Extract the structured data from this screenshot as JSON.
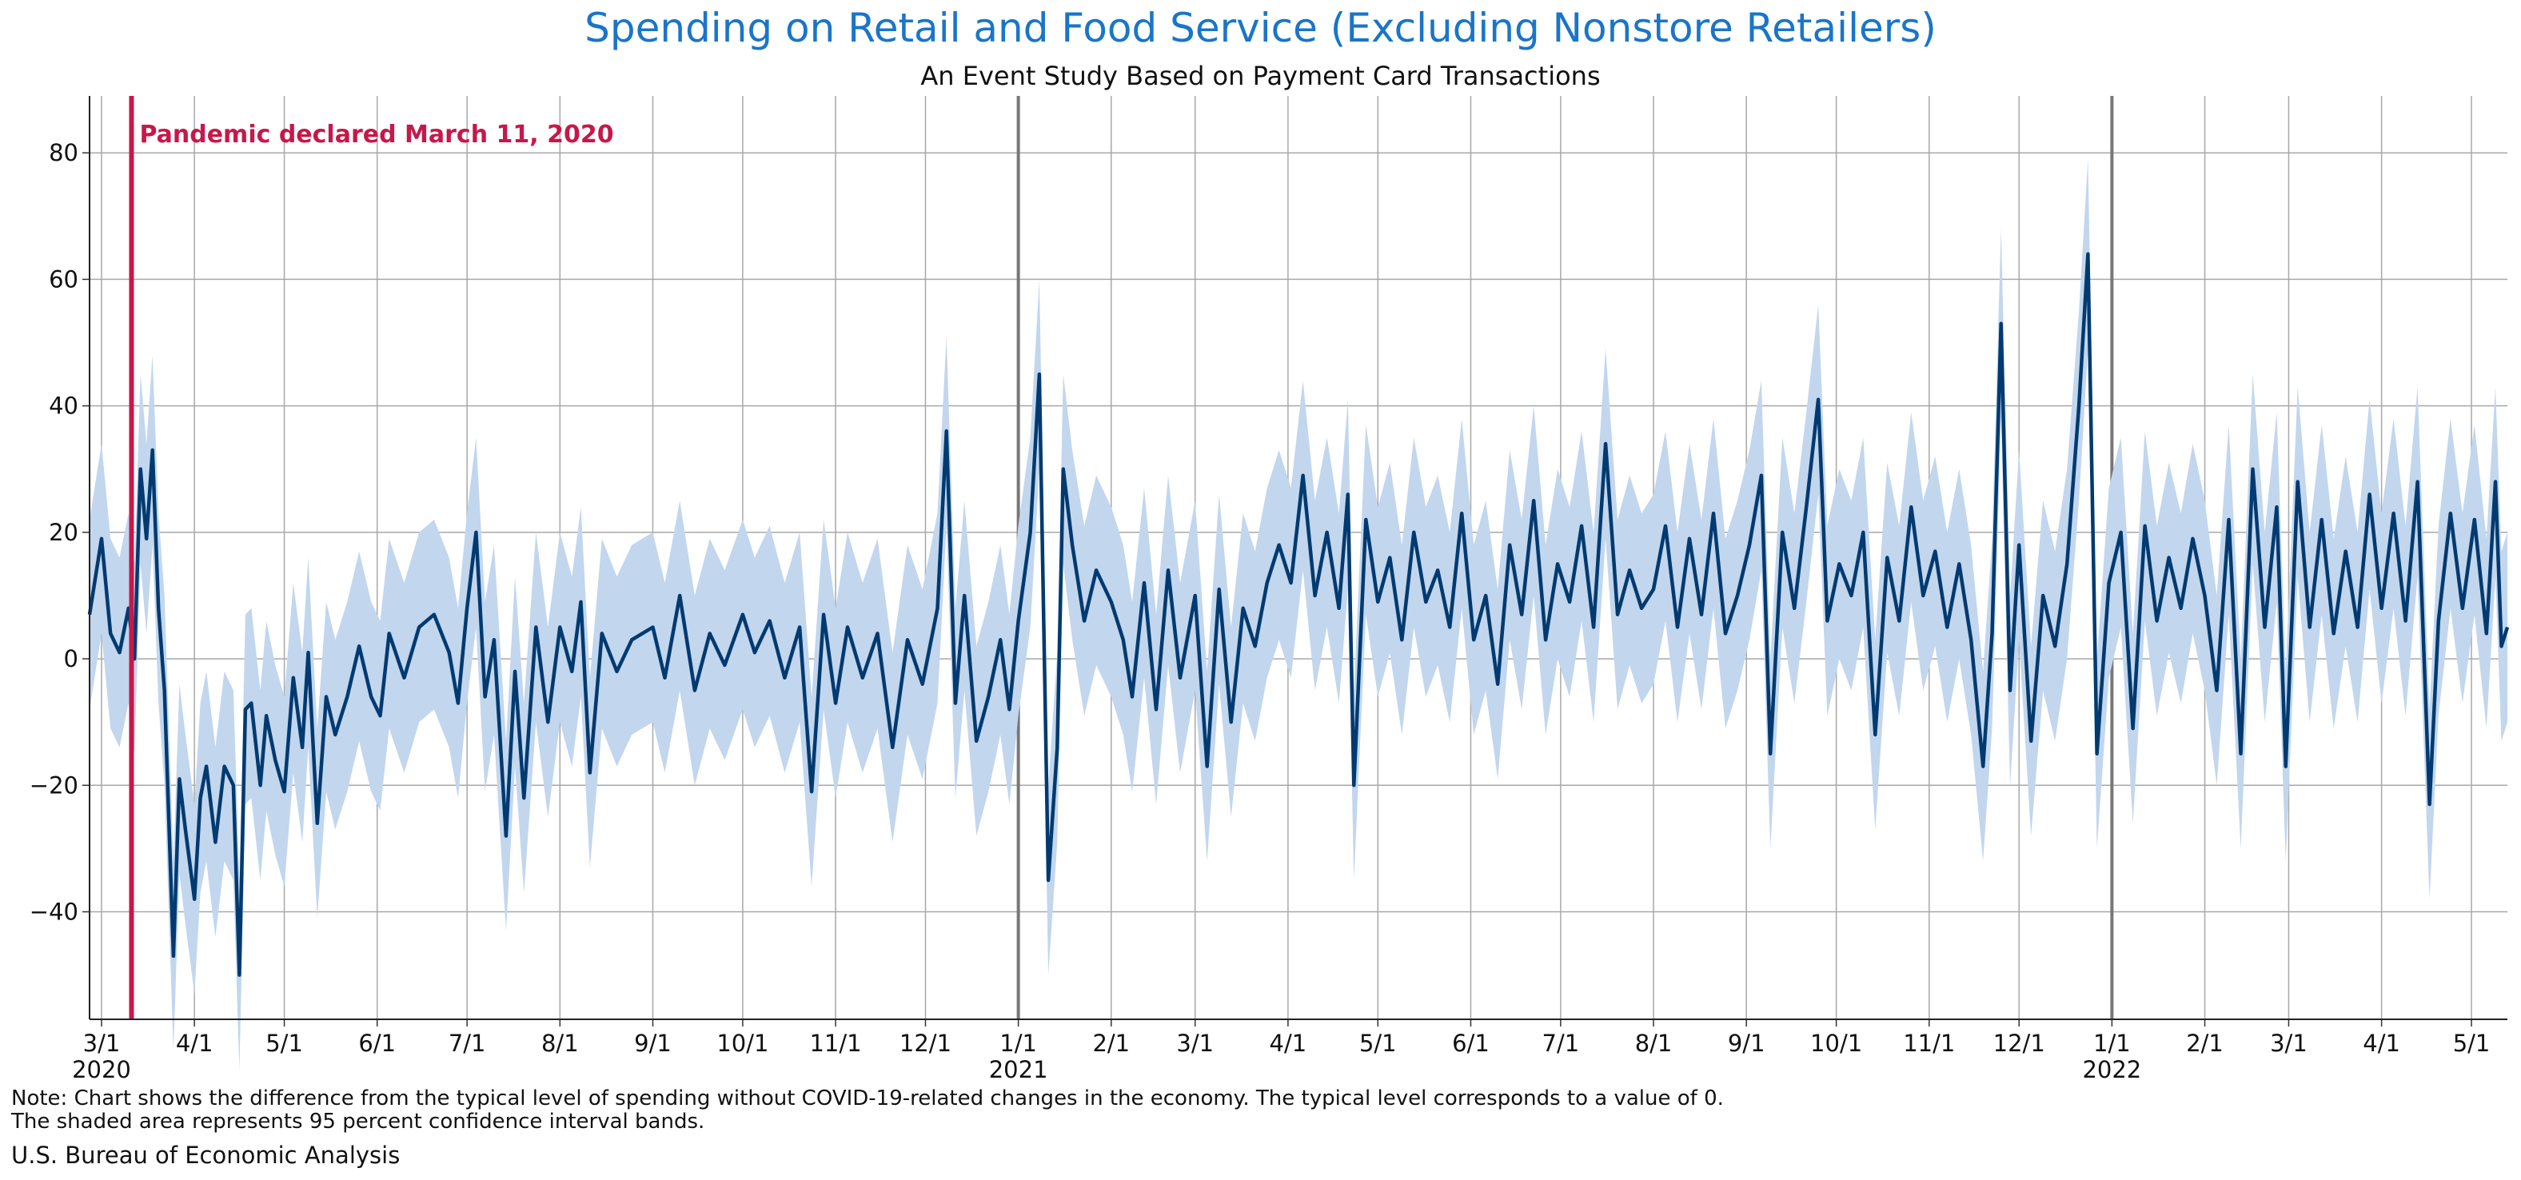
{
  "chart_data": {
    "type": "line",
    "title": "Spending on Retail and Food Service (Excluding Nonstore Retailers)",
    "subtitle": "An Event Study Based on Payment Card Transactions",
    "xlabel": "",
    "ylabel": "",
    "ylim": [
      -57,
      89
    ],
    "yticks": [
      -40,
      -20,
      0,
      20,
      40,
      60,
      80
    ],
    "ytick_labels": [
      "−40",
      "−20",
      "0",
      "20",
      "40",
      "60",
      "80"
    ],
    "xlim": [
      "2020-02-26",
      "2022-05-13"
    ],
    "grid": true,
    "xticks": [
      {
        "date": "2020-03-01",
        "label": "3/1",
        "year": "2020"
      },
      {
        "date": "2020-04-01",
        "label": "4/1"
      },
      {
        "date": "2020-05-01",
        "label": "5/1"
      },
      {
        "date": "2020-06-01",
        "label": "6/1"
      },
      {
        "date": "2020-07-01",
        "label": "7/1"
      },
      {
        "date": "2020-08-01",
        "label": "8/1"
      },
      {
        "date": "2020-09-01",
        "label": "9/1"
      },
      {
        "date": "2020-10-01",
        "label": "10/1"
      },
      {
        "date": "2020-11-01",
        "label": "11/1"
      },
      {
        "date": "2020-12-01",
        "label": "12/1"
      },
      {
        "date": "2021-01-01",
        "label": "1/1",
        "year": "2021"
      },
      {
        "date": "2021-02-01",
        "label": "2/1"
      },
      {
        "date": "2021-03-01",
        "label": "3/1"
      },
      {
        "date": "2021-04-01",
        "label": "4/1"
      },
      {
        "date": "2021-05-01",
        "label": "5/1"
      },
      {
        "date": "2021-06-01",
        "label": "6/1"
      },
      {
        "date": "2021-07-01",
        "label": "7/1"
      },
      {
        "date": "2021-08-01",
        "label": "8/1"
      },
      {
        "date": "2021-09-01",
        "label": "9/1"
      },
      {
        "date": "2021-10-01",
        "label": "10/1"
      },
      {
        "date": "2021-11-01",
        "label": "11/1"
      },
      {
        "date": "2021-12-01",
        "label": "12/1"
      },
      {
        "date": "2022-01-01",
        "label": "1/1",
        "year": "2022"
      },
      {
        "date": "2022-02-01",
        "label": "2/1"
      },
      {
        "date": "2022-03-01",
        "label": "3/1"
      },
      {
        "date": "2022-04-01",
        "label": "4/1"
      },
      {
        "date": "2022-05-01",
        "label": "5/1"
      }
    ],
    "year_dividers": [
      "2021-01-01",
      "2022-01-01"
    ],
    "event": {
      "date": "2020-03-11",
      "label": "Pandemic declared March 11, 2020",
      "color": "#c8174a"
    },
    "series": [
      {
        "line_color": "#003a70",
        "band_color": "#c2d6ee",
        "band_half_width": 15,
        "points": [
          [
            "2020-02-26",
            7
          ],
          [
            "2020-03-01",
            19
          ],
          [
            "2020-03-04",
            4
          ],
          [
            "2020-03-07",
            1
          ],
          [
            "2020-03-10",
            8
          ],
          [
            "2020-03-12",
            0
          ],
          [
            "2020-03-14",
            30
          ],
          [
            "2020-03-16",
            19
          ],
          [
            "2020-03-18",
            33
          ],
          [
            "2020-03-20",
            8
          ],
          [
            "2020-03-22",
            -5
          ],
          [
            "2020-03-25",
            -47
          ],
          [
            "2020-03-27",
            -19
          ],
          [
            "2020-03-29",
            -27
          ],
          [
            "2020-04-01",
            -38
          ],
          [
            "2020-04-03",
            -22
          ],
          [
            "2020-04-05",
            -17
          ],
          [
            "2020-04-08",
            -29
          ],
          [
            "2020-04-11",
            -17
          ],
          [
            "2020-04-14",
            -20
          ],
          [
            "2020-04-16",
            -50
          ],
          [
            "2020-04-18",
            -8
          ],
          [
            "2020-04-20",
            -7
          ],
          [
            "2020-04-23",
            -20
          ],
          [
            "2020-04-25",
            -9
          ],
          [
            "2020-04-28",
            -16
          ],
          [
            "2020-05-01",
            -21
          ],
          [
            "2020-05-04",
            -3
          ],
          [
            "2020-05-07",
            -14
          ],
          [
            "2020-05-09",
            1
          ],
          [
            "2020-05-12",
            -26
          ],
          [
            "2020-05-15",
            -6
          ],
          [
            "2020-05-18",
            -12
          ],
          [
            "2020-05-22",
            -6
          ],
          [
            "2020-05-26",
            2
          ],
          [
            "2020-05-30",
            -6
          ],
          [
            "2020-06-02",
            -9
          ],
          [
            "2020-06-05",
            4
          ],
          [
            "2020-06-10",
            -3
          ],
          [
            "2020-06-15",
            5
          ],
          [
            "2020-06-20",
            7
          ],
          [
            "2020-06-25",
            1
          ],
          [
            "2020-06-28",
            -7
          ],
          [
            "2020-07-01",
            8
          ],
          [
            "2020-07-04",
            20
          ],
          [
            "2020-07-07",
            -6
          ],
          [
            "2020-07-10",
            3
          ],
          [
            "2020-07-14",
            -28
          ],
          [
            "2020-07-17",
            -2
          ],
          [
            "2020-07-20",
            -22
          ],
          [
            "2020-07-24",
            5
          ],
          [
            "2020-07-28",
            -10
          ],
          [
            "2020-08-01",
            5
          ],
          [
            "2020-08-05",
            -2
          ],
          [
            "2020-08-08",
            9
          ],
          [
            "2020-08-11",
            -18
          ],
          [
            "2020-08-15",
            4
          ],
          [
            "2020-08-20",
            -2
          ],
          [
            "2020-08-25",
            3
          ],
          [
            "2020-09-01",
            5
          ],
          [
            "2020-09-05",
            -3
          ],
          [
            "2020-09-10",
            10
          ],
          [
            "2020-09-15",
            -5
          ],
          [
            "2020-09-20",
            4
          ],
          [
            "2020-09-25",
            -1
          ],
          [
            "2020-10-01",
            7
          ],
          [
            "2020-10-05",
            1
          ],
          [
            "2020-10-10",
            6
          ],
          [
            "2020-10-15",
            -3
          ],
          [
            "2020-10-20",
            5
          ],
          [
            "2020-10-24",
            -21
          ],
          [
            "2020-10-28",
            7
          ],
          [
            "2020-11-01",
            -7
          ],
          [
            "2020-11-05",
            5
          ],
          [
            "2020-11-10",
            -3
          ],
          [
            "2020-11-15",
            4
          ],
          [
            "2020-11-20",
            -14
          ],
          [
            "2020-11-25",
            3
          ],
          [
            "2020-11-30",
            -4
          ],
          [
            "2020-12-05",
            8
          ],
          [
            "2020-12-08",
            36
          ],
          [
            "2020-12-11",
            -7
          ],
          [
            "2020-12-14",
            10
          ],
          [
            "2020-12-18",
            -13
          ],
          [
            "2020-12-22",
            -6
          ],
          [
            "2020-12-26",
            3
          ],
          [
            "2020-12-29",
            -8
          ],
          [
            "2021-01-01",
            6
          ],
          [
            "2021-01-05",
            20
          ],
          [
            "2021-01-08",
            45
          ],
          [
            "2021-01-11",
            -35
          ],
          [
            "2021-01-14",
            -14
          ],
          [
            "2021-01-16",
            30
          ],
          [
            "2021-01-19",
            18
          ],
          [
            "2021-01-23",
            6
          ],
          [
            "2021-01-27",
            14
          ],
          [
            "2021-02-01",
            9
          ],
          [
            "2021-02-05",
            3
          ],
          [
            "2021-02-08",
            -6
          ],
          [
            "2021-02-12",
            12
          ],
          [
            "2021-02-16",
            -8
          ],
          [
            "2021-02-20",
            14
          ],
          [
            "2021-02-24",
            -3
          ],
          [
            "2021-03-01",
            10
          ],
          [
            "2021-03-05",
            -17
          ],
          [
            "2021-03-09",
            11
          ],
          [
            "2021-03-13",
            -10
          ],
          [
            "2021-03-17",
            8
          ],
          [
            "2021-03-21",
            2
          ],
          [
            "2021-03-25",
            12
          ],
          [
            "2021-03-29",
            18
          ],
          [
            "2021-04-02",
            12
          ],
          [
            "2021-04-06",
            29
          ],
          [
            "2021-04-10",
            10
          ],
          [
            "2021-04-14",
            20
          ],
          [
            "2021-04-18",
            8
          ],
          [
            "2021-04-21",
            26
          ],
          [
            "2021-04-23",
            -20
          ],
          [
            "2021-04-27",
            22
          ],
          [
            "2021-05-01",
            9
          ],
          [
            "2021-05-05",
            16
          ],
          [
            "2021-05-09",
            3
          ],
          [
            "2021-05-13",
            20
          ],
          [
            "2021-05-17",
            9
          ],
          [
            "2021-05-21",
            14
          ],
          [
            "2021-05-25",
            5
          ],
          [
            "2021-05-29",
            23
          ],
          [
            "2021-06-02",
            3
          ],
          [
            "2021-06-06",
            10
          ],
          [
            "2021-06-10",
            -4
          ],
          [
            "2021-06-14",
            18
          ],
          [
            "2021-06-18",
            7
          ],
          [
            "2021-06-22",
            25
          ],
          [
            "2021-06-26",
            3
          ],
          [
            "2021-06-30",
            15
          ],
          [
            "2021-07-04",
            9
          ],
          [
            "2021-07-08",
            21
          ],
          [
            "2021-07-12",
            5
          ],
          [
            "2021-07-16",
            34
          ],
          [
            "2021-07-20",
            7
          ],
          [
            "2021-07-24",
            14
          ],
          [
            "2021-07-28",
            8
          ],
          [
            "2021-08-01",
            11
          ],
          [
            "2021-08-05",
            21
          ],
          [
            "2021-08-09",
            5
          ],
          [
            "2021-08-13",
            19
          ],
          [
            "2021-08-17",
            7
          ],
          [
            "2021-08-21",
            23
          ],
          [
            "2021-08-25",
            4
          ],
          [
            "2021-08-29",
            10
          ],
          [
            "2021-09-02",
            18
          ],
          [
            "2021-09-06",
            29
          ],
          [
            "2021-09-09",
            -15
          ],
          [
            "2021-09-13",
            20
          ],
          [
            "2021-09-17",
            8
          ],
          [
            "2021-09-21",
            24
          ],
          [
            "2021-09-25",
            41
          ],
          [
            "2021-09-28",
            6
          ],
          [
            "2021-10-02",
            15
          ],
          [
            "2021-10-06",
            10
          ],
          [
            "2021-10-10",
            20
          ],
          [
            "2021-10-14",
            -12
          ],
          [
            "2021-10-18",
            16
          ],
          [
            "2021-10-22",
            6
          ],
          [
            "2021-10-26",
            24
          ],
          [
            "2021-10-30",
            10
          ],
          [
            "2021-11-03",
            17
          ],
          [
            "2021-11-07",
            5
          ],
          [
            "2021-11-11",
            15
          ],
          [
            "2021-11-15",
            3
          ],
          [
            "2021-11-19",
            -17
          ],
          [
            "2021-11-22",
            4
          ],
          [
            "2021-11-25",
            53
          ],
          [
            "2021-11-28",
            -5
          ],
          [
            "2021-12-01",
            18
          ],
          [
            "2021-12-05",
            -13
          ],
          [
            "2021-12-09",
            10
          ],
          [
            "2021-12-13",
            2
          ],
          [
            "2021-12-17",
            15
          ],
          [
            "2021-12-21",
            40
          ],
          [
            "2021-12-24",
            64
          ],
          [
            "2021-12-27",
            -15
          ],
          [
            "2021-12-31",
            12
          ],
          [
            "2022-01-04",
            20
          ],
          [
            "2022-01-08",
            -11
          ],
          [
            "2022-01-12",
            21
          ],
          [
            "2022-01-16",
            6
          ],
          [
            "2022-01-20",
            16
          ],
          [
            "2022-01-24",
            8
          ],
          [
            "2022-01-28",
            19
          ],
          [
            "2022-02-01",
            10
          ],
          [
            "2022-02-05",
            -5
          ],
          [
            "2022-02-09",
            22
          ],
          [
            "2022-02-13",
            -15
          ],
          [
            "2022-02-17",
            30
          ],
          [
            "2022-02-21",
            5
          ],
          [
            "2022-02-25",
            24
          ],
          [
            "2022-02-28",
            -17
          ],
          [
            "2022-03-04",
            28
          ],
          [
            "2022-03-08",
            5
          ],
          [
            "2022-03-12",
            22
          ],
          [
            "2022-03-16",
            4
          ],
          [
            "2022-03-20",
            17
          ],
          [
            "2022-03-24",
            5
          ],
          [
            "2022-03-28",
            26
          ],
          [
            "2022-04-01",
            8
          ],
          [
            "2022-04-05",
            23
          ],
          [
            "2022-04-09",
            6
          ],
          [
            "2022-04-13",
            28
          ],
          [
            "2022-04-17",
            -23
          ],
          [
            "2022-04-20",
            6
          ],
          [
            "2022-04-24",
            23
          ],
          [
            "2022-04-28",
            8
          ],
          [
            "2022-05-02",
            22
          ],
          [
            "2022-05-06",
            4
          ],
          [
            "2022-05-09",
            28
          ],
          [
            "2022-05-11",
            2
          ],
          [
            "2022-05-13",
            5
          ]
        ]
      }
    ]
  },
  "note_line1": "Note: Chart shows the difference from the typical level of spending without COVID-19-related changes in the economy. The typical level corresponds to a value of 0.",
  "note_line2": "The shaded area represents 95 percent confidence interval bands.",
  "source": "U.S. Bureau of Economic Analysis"
}
